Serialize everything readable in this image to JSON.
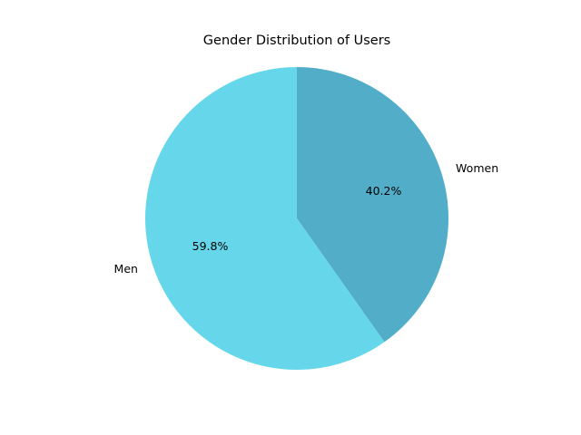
{
  "chart_data": {
    "type": "pie",
    "title": "Gender Distribution of Users",
    "categories": [
      "Women",
      "Men"
    ],
    "values": [
      40.2,
      59.8
    ],
    "value_labels": [
      "40.2%",
      "59.8%"
    ],
    "colors": [
      "#52aec8",
      "#66d7ea"
    ],
    "start_angle_deg": 90,
    "direction": "clockwise",
    "legend": "none"
  }
}
